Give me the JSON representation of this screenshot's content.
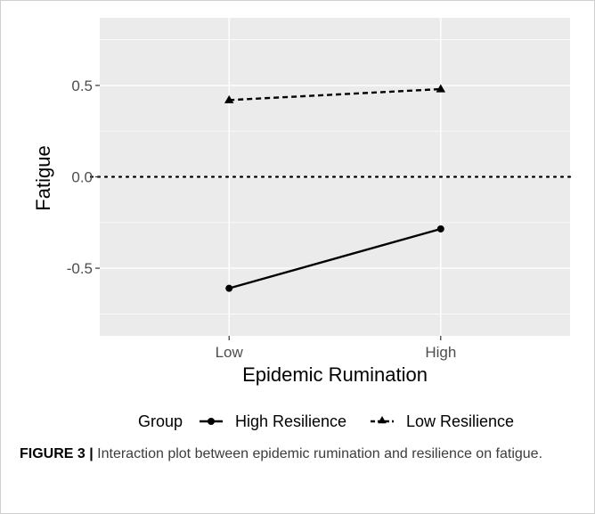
{
  "chart_data": {
    "type": "line",
    "xlabel": "Epidemic Rumination",
    "ylabel": "Fatigue",
    "categories": [
      "Low",
      "High"
    ],
    "ylim": [
      -0.87,
      0.87
    ],
    "yticks": [
      -0.5,
      0.0,
      0.5
    ],
    "ytick_labels": [
      "-0.5",
      "0.0",
      "0.5"
    ],
    "reference_line": 0.0,
    "grid": true,
    "legend_placement": "bottom",
    "legend_title": "Group",
    "series": [
      {
        "name": "High Resilience",
        "values": [
          -0.61,
          -0.285
        ],
        "line": "solid",
        "marker": "circle"
      },
      {
        "name": "Low Resilience",
        "values": [
          0.42,
          0.48
        ],
        "line": "dashed",
        "marker": "triangle"
      }
    ],
    "colors": {
      "panel": "#ebebeb",
      "grid": "#ffffff",
      "line": "#000000",
      "tick_text": "#4d4d4d"
    }
  },
  "caption": {
    "label": "FIGURE 3 |",
    "text": " Interaction plot between epidemic rumination and resilience on fatigue."
  }
}
